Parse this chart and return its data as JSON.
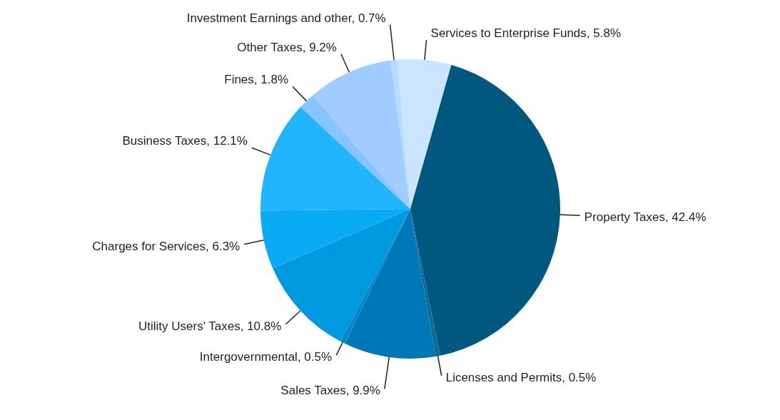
{
  "chart_data": {
    "type": "pie",
    "categories": [
      "Services to Enterprise Funds",
      "Property Taxes",
      "Licenses and Permits",
      "Sales Taxes",
      "Intergovernmental",
      "Utility Users' Taxes",
      "Charges for Services",
      "Business Taxes",
      "Fines",
      "Other Taxes",
      "Investment Earnings and other"
    ],
    "values": [
      5.8,
      42.4,
      0.5,
      9.9,
      0.5,
      10.8,
      6.3,
      12.1,
      1.8,
      9.2,
      0.7
    ],
    "value_labels": [
      "5.8%",
      "42.4%",
      "0.5%",
      "9.9%",
      "0.5%",
      "10.8%",
      "6.3%",
      "12.1%",
      "1.8%",
      "9.2%",
      "0.7%"
    ],
    "colors": [
      "#cce5ff",
      "#00587f",
      "#0a6a9a",
      "#0077b6",
      "#0088c8",
      "#0099e0",
      "#0aaaf5",
      "#22b4ff",
      "#88c4ff",
      "#a0ccff",
      "#b8dcff"
    ]
  }
}
